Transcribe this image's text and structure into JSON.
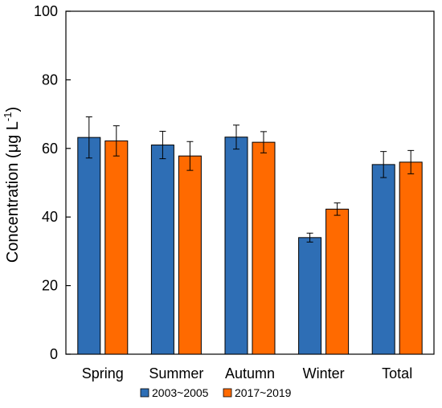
{
  "chart_data": {
    "type": "bar",
    "title": "",
    "xlabel": "",
    "ylabel_main": "Concentration  (μg L",
    "ylabel_sup": "-1",
    "ylabel_close": ")",
    "ylim": [
      0,
      100
    ],
    "yticks": [
      0,
      20,
      40,
      60,
      80,
      100
    ],
    "categories": [
      "Spring",
      "Summer",
      "Autumn",
      "Winter",
      "Total"
    ],
    "series": [
      {
        "name": "2003~2005",
        "color": "#2E6EB5",
        "values": [
          63.2,
          61.0,
          63.3,
          34.0,
          55.3
        ],
        "errors": [
          6.0,
          4.0,
          3.5,
          1.3,
          3.8
        ]
      },
      {
        "name": "2017~2019",
        "color": "#FF6A00",
        "values": [
          62.2,
          57.8,
          61.8,
          42.3,
          56.0
        ],
        "errors": [
          4.4,
          4.2,
          3.1,
          1.8,
          3.4
        ]
      }
    ],
    "grid": false,
    "legend_position": "bottom"
  }
}
